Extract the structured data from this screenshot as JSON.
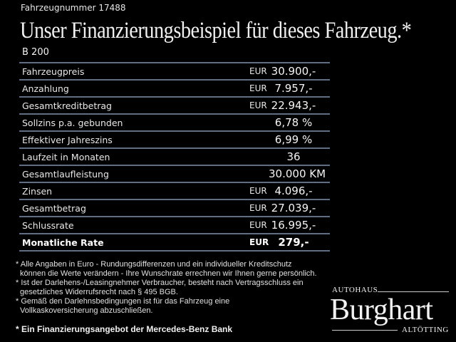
{
  "header": {
    "vehicle_number": "Fahrzeugnummer 17488",
    "title": "Unser Finanzierungsbeispiel für dieses Fahrzeug.*",
    "model": "B 200"
  },
  "table": {
    "rows": [
      {
        "label": "Fahrzeugpreis",
        "currency": "EUR",
        "value": "30.900,-"
      },
      {
        "label": "Anzahlung",
        "currency": "EUR",
        "value": "7.957,-"
      },
      {
        "label": "Gesamtkreditbetrag",
        "currency": "EUR",
        "value": "22.943,-"
      },
      {
        "label": "Sollzins p.a. gebunden",
        "currency": "",
        "value": "6,78 %"
      },
      {
        "label": "Effektiver Jahreszins",
        "currency": "",
        "value": "6,99 %"
      },
      {
        "label": "Laufzeit in Monaten",
        "currency": "",
        "value": "36"
      },
      {
        "label": "Gesamtlaufleistung",
        "currency": "",
        "value": "30.000 KM"
      },
      {
        "label": "Zinsen",
        "currency": "EUR",
        "value": "4.096,-"
      },
      {
        "label": "Gesamtbetrag",
        "currency": "EUR",
        "value": "27.039,-"
      },
      {
        "label": "Schlussrate",
        "currency": "EUR",
        "value": "16.995,-"
      },
      {
        "label": "Monatliche Rate",
        "currency": "EUR",
        "value": "279,-"
      }
    ]
  },
  "notes": [
    "* Alle Angaben in Euro - Rundungsdifferenzen und ein individueller Kreditschutz\nkönnen die Werte verändern - Ihre Wunschrate errechnen wir Ihnen gerne persönlich.",
    "* Ist der Darlehens-/Leasingnehmer Verbraucher, besteht nach Vertragsschluss ein\ngesetzliches Widerrufsrecht nach § 495 BGB.",
    "* Gemäß den Darlehnsbedingungen ist für das Fahrzeug eine\nVollkaskoversicherung abzuschließen."
  ],
  "bank_note": "* Ein Finanzierungsangebot der Mercedes-Benz Bank",
  "logo": {
    "top": "AUTOHAUS",
    "name": "Burghart",
    "bottom": "ALTÖTTING"
  },
  "colors": {
    "background": "#000000",
    "divider": "#5f6e86",
    "text": "#f2f2f2"
  }
}
